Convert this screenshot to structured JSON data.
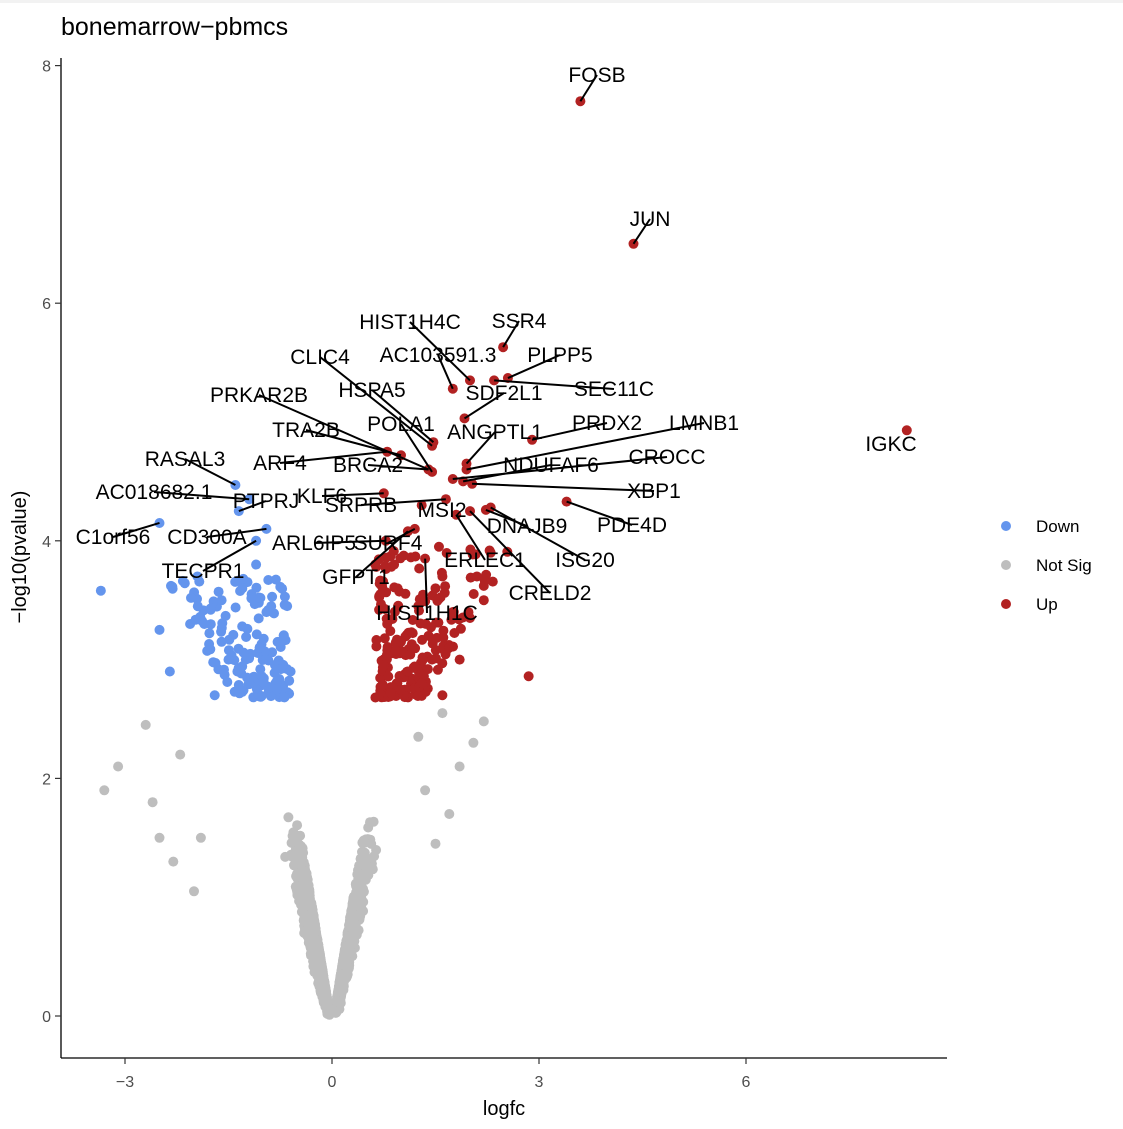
{
  "chart_data": {
    "type": "scatter",
    "title": "bonemarrow−pbmcs",
    "xlabel": "logfc",
    "ylabel": "−log10(pvalue)",
    "xlim": [
      -3.9,
      9.0
    ],
    "ylim": [
      -0.4,
      8.1
    ],
    "x_ticks": [
      -3,
      0,
      3,
      6
    ],
    "x_tick_labels": [
      "−3",
      "0",
      "3",
      "6"
    ],
    "y_ticks": [
      0,
      2,
      4,
      6,
      8
    ],
    "y_tick_labels": [
      "0",
      "2",
      "4",
      "6",
      "8"
    ],
    "grid": false,
    "legend_position": "right",
    "colors": {
      "Down": "#6495ed",
      "Not Sig": "#bebebe",
      "Up": "#b22222"
    },
    "legend": [
      {
        "label": "Down",
        "color": "#6495ed"
      },
      {
        "label": "Not Sig",
        "color": "#bebebe"
      },
      {
        "label": "Up",
        "color": "#b22222"
      }
    ],
    "labeled_points": [
      {
        "gene": "FOSB",
        "x": 3.6,
        "y": 7.7,
        "group": "Up"
      },
      {
        "gene": "JUN",
        "x": 4.37,
        "y": 6.5,
        "group": "Up"
      },
      {
        "gene": "IGKC",
        "x": 8.33,
        "y": 4.93,
        "group": "Up"
      },
      {
        "gene": "SSR4",
        "x": 2.48,
        "y": 5.63,
        "group": "Up"
      },
      {
        "gene": "PLPP5",
        "x": 2.55,
        "y": 5.37,
        "group": "Up"
      },
      {
        "gene": "SEC11C",
        "x": 2.35,
        "y": 5.35,
        "group": "Up"
      },
      {
        "gene": "HIST1H4C",
        "x": 2.0,
        "y": 5.35,
        "group": "Up"
      },
      {
        "gene": "AC103591.3",
        "x": 1.75,
        "y": 5.28,
        "group": "Up"
      },
      {
        "gene": "SDF2L1",
        "x": 1.92,
        "y": 5.03,
        "group": "Up"
      },
      {
        "gene": "CLIC4",
        "x": 1.45,
        "y": 4.8,
        "group": "Up"
      },
      {
        "gene": "HSPA5",
        "x": 1.47,
        "y": 4.83,
        "group": "Up"
      },
      {
        "gene": "PRKAR2B",
        "x": 1.4,
        "y": 4.6,
        "group": "Up"
      },
      {
        "gene": "PRDX2",
        "x": 2.9,
        "y": 4.85,
        "group": "Up"
      },
      {
        "gene": "LMNB1",
        "x": 1.95,
        "y": 4.6,
        "group": "Up"
      },
      {
        "gene": "ANGPTL1",
        "x": 1.95,
        "y": 4.65,
        "group": "Up"
      },
      {
        "gene": "POLA1",
        "x": 1.45,
        "y": 4.58,
        "group": "Up"
      },
      {
        "gene": "TRA2B",
        "x": 1.0,
        "y": 4.72,
        "group": "Up"
      },
      {
        "gene": "CROCC",
        "x": 1.75,
        "y": 4.52,
        "group": "Up"
      },
      {
        "gene": "NDUFAF6",
        "x": 1.9,
        "y": 4.5,
        "group": "Up"
      },
      {
        "gene": "BRCA2",
        "x": 1.4,
        "y": 4.6,
        "group": "Up"
      },
      {
        "gene": "ARF4",
        "x": 0.8,
        "y": 4.75,
        "group": "Up"
      },
      {
        "gene": "RASAL3",
        "x": -1.4,
        "y": 4.47,
        "group": "Down"
      },
      {
        "gene": "XBP1",
        "x": 2.03,
        "y": 4.48,
        "group": "Up"
      },
      {
        "gene": "AC018682.1",
        "x": -1.2,
        "y": 4.35,
        "group": "Down"
      },
      {
        "gene": "PTPRJ",
        "x": -1.35,
        "y": 4.25,
        "group": "Down"
      },
      {
        "gene": "KLF6",
        "x": 0.75,
        "y": 4.4,
        "group": "Up"
      },
      {
        "gene": "SRPRB",
        "x": 1.65,
        "y": 4.35,
        "group": "Up"
      },
      {
        "gene": "PDE4D",
        "x": 3.4,
        "y": 4.33,
        "group": "Up"
      },
      {
        "gene": "MSI2",
        "x": 1.3,
        "y": 4.3,
        "group": "Up"
      },
      {
        "gene": "DNAJB9",
        "x": 2.23,
        "y": 4.26,
        "group": "Up"
      },
      {
        "gene": "C1orf56",
        "x": -2.5,
        "y": 4.15,
        "group": "Down"
      },
      {
        "gene": "CD300A",
        "x": -0.95,
        "y": 4.1,
        "group": "Down"
      },
      {
        "gene": "ISG20",
        "x": 2.3,
        "y": 4.28,
        "group": "Up"
      },
      {
        "gene": "ARL6IP5",
        "x": 0.78,
        "y": 4.0,
        "group": "Up"
      },
      {
        "gene": "SURF4",
        "x": 1.2,
        "y": 4.1,
        "group": "Up"
      },
      {
        "gene": "ERLEC1",
        "x": 1.8,
        "y": 4.22,
        "group": "Up"
      },
      {
        "gene": "TECPR1",
        "x": -1.1,
        "y": 4.0,
        "group": "Down"
      },
      {
        "gene": "GFPT1",
        "x": 1.1,
        "y": 4.08,
        "group": "Up"
      },
      {
        "gene": "CRELD2",
        "x": 2.0,
        "y": 4.25,
        "group": "Up"
      },
      {
        "gene": "HIST1H1C",
        "x": 1.35,
        "y": 3.85,
        "group": "Up"
      }
    ],
    "other_points": {
      "down": [
        [
          -3.35,
          3.58
        ],
        [
          -2.5,
          3.25
        ],
        [
          -2.35,
          2.9
        ],
        [
          -1.95,
          3.7
        ],
        [
          -1.85,
          3.3
        ],
        [
          -1.6,
          3.5
        ],
        [
          -1.7,
          2.7
        ],
        [
          -1.3,
          3.6
        ],
        [
          -1.1,
          3.8
        ],
        [
          -0.95,
          3.4
        ],
        [
          -0.65,
          3.45
        ],
        [
          -0.6,
          2.9
        ],
        [
          -1.5,
          3.0
        ],
        [
          -1.2,
          2.8
        ],
        [
          -0.8,
          2.75
        ],
        [
          -1.05,
          3.1
        ],
        [
          -1.6,
          3.15
        ],
        [
          -0.7,
          3.2
        ]
      ],
      "up": [
        [
          2.85,
          2.86
        ],
        [
          2.2,
          3.5
        ],
        [
          2.3,
          3.9
        ],
        [
          2.0,
          3.35
        ],
        [
          1.7,
          3.1
        ],
        [
          1.6,
          3.7
        ],
        [
          1.5,
          3.6
        ],
        [
          0.8,
          3.3
        ],
        [
          0.7,
          3.55
        ],
        [
          1.4,
          3.2
        ],
        [
          0.9,
          3.8
        ],
        [
          1.85,
          3.0
        ],
        [
          1.3,
          2.8
        ],
        [
          1.1,
          2.9
        ],
        [
          0.75,
          2.95
        ],
        [
          1.6,
          2.7
        ],
        [
          1.25,
          3.45
        ],
        [
          1.0,
          3.15
        ],
        [
          0.85,
          2.72
        ],
        [
          1.55,
          3.95
        ],
        [
          2.1,
          3.7
        ],
        [
          1.45,
          3.0
        ],
        [
          0.95,
          3.6
        ],
        [
          1.75,
          3.4
        ]
      ]
    }
  }
}
